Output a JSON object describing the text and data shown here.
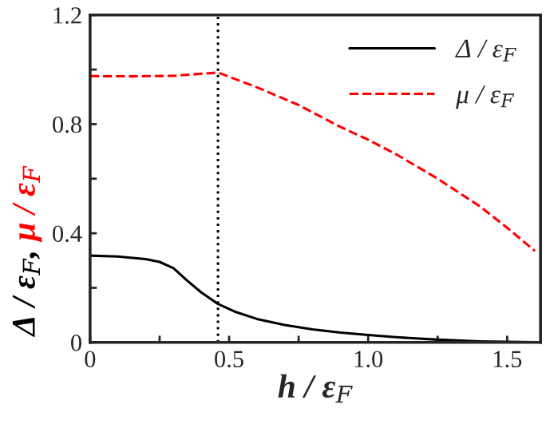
{
  "chart_data": {
    "type": "line",
    "xlabel": "h / ε$_{F}$",
    "ylabel": "Δ / ε$_{F}$, μ / ε$_{F}$",
    "series": [
      {
        "name": "Δ / ε$_{F}$",
        "color": "#000000",
        "line_style": "solid",
        "x": [
          0,
          0.1,
          0.2,
          0.25,
          0.3,
          0.35,
          0.4,
          0.46,
          0.52,
          0.6,
          0.7,
          0.8,
          0.9,
          1.0,
          1.1,
          1.25,
          1.4,
          1.5,
          1.6
        ],
        "values": [
          0.318,
          0.315,
          0.305,
          0.295,
          0.272,
          0.226,
          0.183,
          0.141,
          0.113,
          0.086,
          0.064,
          0.048,
          0.036,
          0.027,
          0.019,
          0.01,
          0.004,
          0.002,
          0.001
        ]
      },
      {
        "name": "μ / ε$_{F}$",
        "color": "#ff0000",
        "line_style": "dashed",
        "x": [
          0,
          0.15,
          0.3,
          0.46,
          0.6,
          0.75,
          0.9,
          1.0,
          1.1,
          1.25,
          1.4,
          1.5,
          1.6
        ],
        "values": [
          0.976,
          0.975,
          0.977,
          0.989,
          0.935,
          0.87,
          0.79,
          0.743,
          0.69,
          0.6,
          0.5,
          0.42,
          0.335
        ]
      }
    ],
    "xlim": [
      0,
      1.62
    ],
    "ylim": [
      0,
      1.2
    ],
    "xticks": [
      0,
      {
        "value": 0.25,
        "label": null
      },
      {
        "value": 0.5,
        "label": "0.5"
      },
      {
        "value": 0.75,
        "label": null
      },
      {
        "value": 1.0,
        "label": "1.0"
      },
      {
        "value": 1.25,
        "label": null
      },
      {
        "value": 1.5,
        "label": "1.5"
      }
    ],
    "yticks": [
      0,
      {
        "value": 0.2,
        "label": null
      },
      0.4,
      {
        "value": 0.6,
        "label": null
      },
      0.8,
      {
        "value": 1.0,
        "label": null
      },
      1.2
    ],
    "ref_lines": [
      {
        "axis": "x",
        "value": 0.46,
        "label": null,
        "line_style": "dotted",
        "color": "#000000"
      }
    ],
    "grid": false,
    "legend": "top right"
  }
}
